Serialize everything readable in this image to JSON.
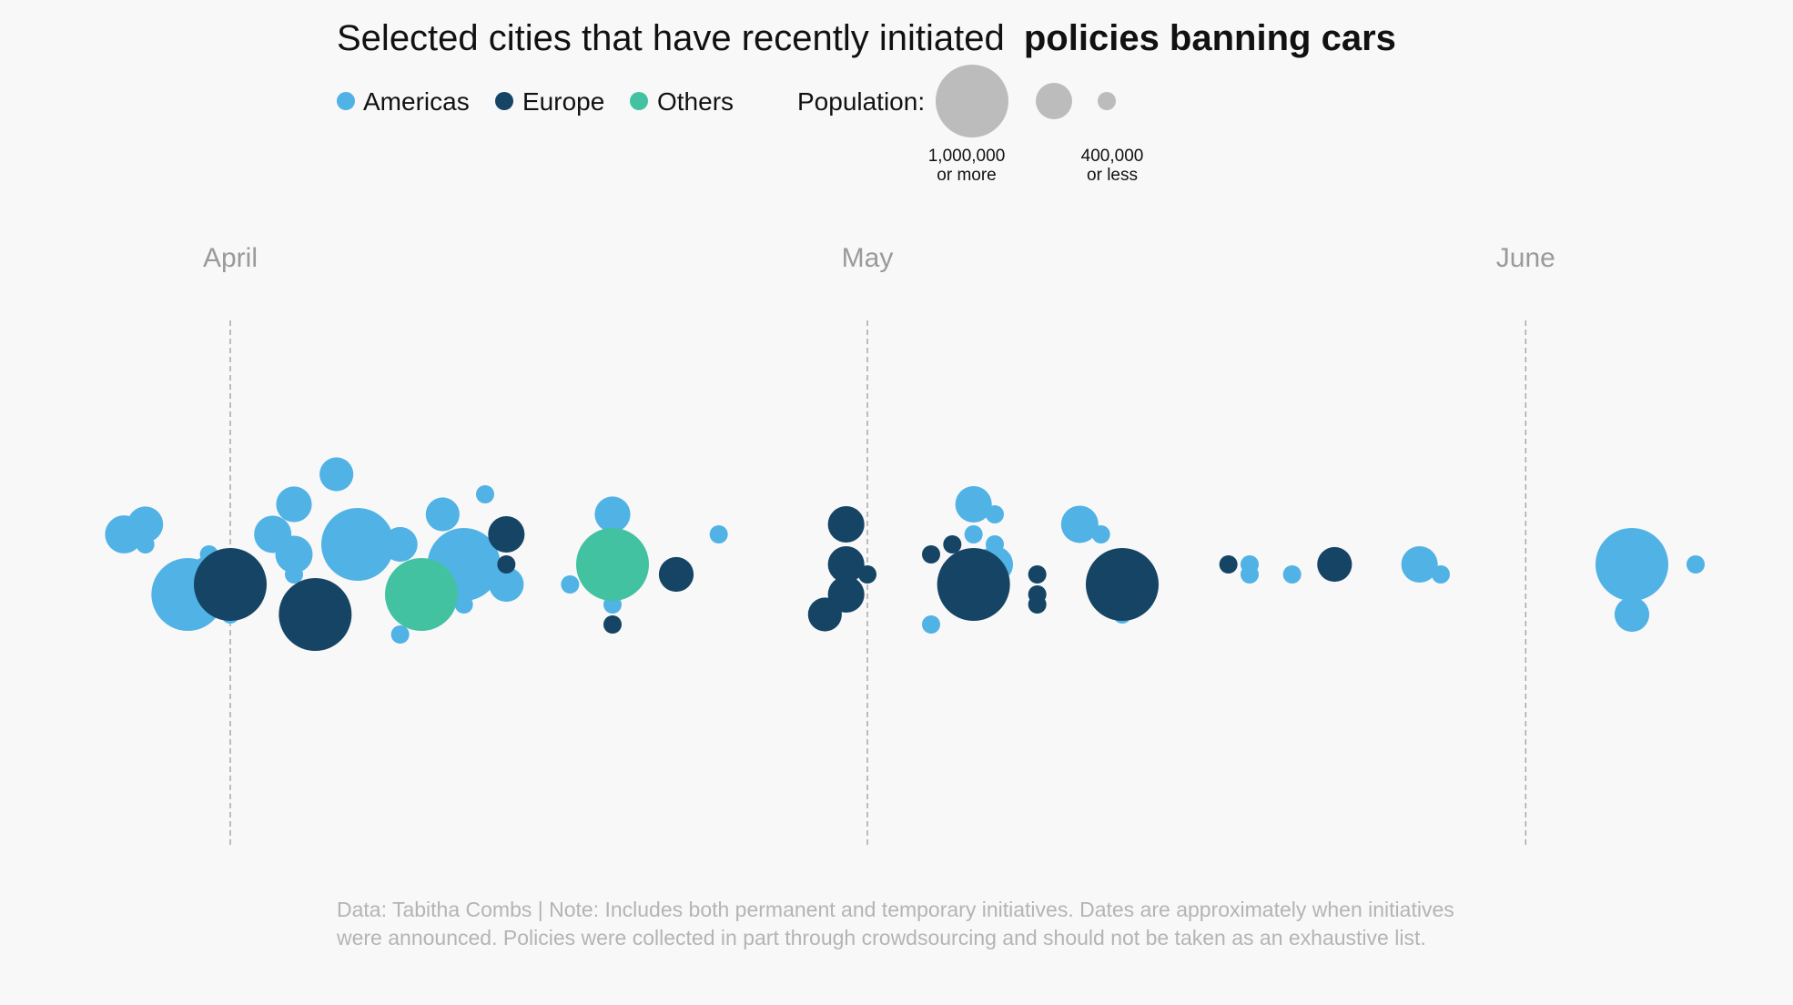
{
  "title": {
    "regular": "Selected cities that have recently initiated",
    "bold": "policies banning cars"
  },
  "legend": {
    "regions": [
      {
        "name": "Americas",
        "color": "#51b2e5"
      },
      {
        "name": "Europe",
        "color": "#154464"
      },
      {
        "name": "Others",
        "color": "#42c2a1"
      }
    ],
    "population_label": "Population:",
    "size_large_line1": "1,000,000",
    "size_large_line2": "or more",
    "size_small_line1": "400,000",
    "size_small_line2": "or less",
    "size_swatch_color": "#bcbcbc"
  },
  "colors": {
    "background": "#f8f8f8",
    "month_gridline": "#a8a8a8",
    "month_label": "#9a9a9a"
  },
  "footnote": "Data: Tabitha Combs | Note: Includes both permanent and temporary initiatives. Dates are approximately when initiatives were announced. Policies were collected in part through crowdsourcing and should not be taken as an exhaustive list.",
  "chart_data": {
    "type": "scatter",
    "subtype": "beeswarm",
    "x_axis": "date",
    "months": [
      {
        "label": "April",
        "date": "2020-04-01"
      },
      {
        "label": "May",
        "date": "2020-05-01"
      },
      {
        "label": "June",
        "date": "2020-06-01"
      }
    ],
    "xlim": [
      "2020-03-25",
      "2020-06-11"
    ],
    "size_legend": [
      {
        "label": "1,000,000 or more",
        "population": 1000000
      },
      {
        "label": null,
        "population": 700000
      },
      {
        "label": "400,000 or less",
        "population": 400000
      }
    ],
    "series": [
      {
        "name": "Americas",
        "points": [
          {
            "date": "2020-03-27",
            "population": 150000,
            "row": 3
          },
          {
            "date": "2020-03-28",
            "population": 120000,
            "row": 4
          },
          {
            "date": "2020-03-28",
            "population": 20000,
            "row": 2
          },
          {
            "date": "2020-03-30",
            "population": 1000000,
            "row": -3
          },
          {
            "date": "2020-03-31",
            "population": 20000,
            "row": 1
          },
          {
            "date": "2020-03-31",
            "population": 140000,
            "row": -1
          },
          {
            "date": "2020-04-01",
            "population": 20000,
            "row": -5
          },
          {
            "date": "2020-04-03",
            "population": 140000,
            "row": 3
          },
          {
            "date": "2020-04-04",
            "population": 120000,
            "row": 6
          },
          {
            "date": "2020-04-04",
            "population": 140000,
            "row": 1
          },
          {
            "date": "2020-04-04",
            "population": 20000,
            "row": -1
          },
          {
            "date": "2020-04-06",
            "population": 100000,
            "row": 9
          },
          {
            "date": "2020-04-07",
            "population": 1000000,
            "row": 2
          },
          {
            "date": "2020-04-09",
            "population": 110000,
            "row": 2
          },
          {
            "date": "2020-04-09",
            "population": 20000,
            "row": -7
          },
          {
            "date": "2020-04-11",
            "population": 100000,
            "row": 5
          },
          {
            "date": "2020-04-12",
            "population": 1000000,
            "row": 0
          },
          {
            "date": "2020-04-12",
            "population": 20000,
            "row": -4
          },
          {
            "date": "2020-04-13",
            "population": 20000,
            "row": 7
          },
          {
            "date": "2020-04-14",
            "population": 110000,
            "row": -2
          },
          {
            "date": "2020-04-17",
            "population": 20000,
            "row": -2
          },
          {
            "date": "2020-04-19",
            "population": 120000,
            "row": 5
          },
          {
            "date": "2020-04-19",
            "population": 20000,
            "row": -4
          },
          {
            "date": "2020-04-24",
            "population": 20000,
            "row": 3
          },
          {
            "date": "2020-04-30",
            "population": 20000,
            "row": 4
          },
          {
            "date": "2020-05-06",
            "population": 130000,
            "row": 6
          },
          {
            "date": "2020-05-06",
            "population": 20000,
            "row": 3
          },
          {
            "date": "2020-05-04",
            "population": 20000,
            "row": -6
          },
          {
            "date": "2020-05-07",
            "population": 20000,
            "row": 5
          },
          {
            "date": "2020-05-07",
            "population": 20000,
            "row": 2
          },
          {
            "date": "2020-05-07",
            "population": 130000,
            "row": 0
          },
          {
            "date": "2020-05-07",
            "population": 20000,
            "row": -2
          },
          {
            "date": "2020-05-11",
            "population": 140000,
            "row": 4
          },
          {
            "date": "2020-05-12",
            "population": 20000,
            "row": 3
          },
          {
            "date": "2020-05-13",
            "population": 20000,
            "row": -5
          },
          {
            "date": "2020-05-19",
            "population": 20000,
            "row": 0
          },
          {
            "date": "2020-05-19",
            "population": 20000,
            "row": -1
          },
          {
            "date": "2020-05-21",
            "population": 20000,
            "row": -1
          },
          {
            "date": "2020-05-27",
            "population": 130000,
            "row": 0
          },
          {
            "date": "2020-05-28",
            "population": 20000,
            "row": -1
          },
          {
            "date": "2020-06-06",
            "population": 1000000,
            "row": 0
          },
          {
            "date": "2020-06-06",
            "population": 110000,
            "row": -5
          },
          {
            "date": "2020-06-09",
            "population": 20000,
            "row": 0
          }
        ]
      },
      {
        "name": "Europe",
        "points": [
          {
            "date": "2020-04-01",
            "population": 1000000,
            "row": -2
          },
          {
            "date": "2020-04-05",
            "population": 1000000,
            "row": -5
          },
          {
            "date": "2020-04-14",
            "population": 130000,
            "row": 3
          },
          {
            "date": "2020-04-14",
            "population": 20000,
            "row": 0
          },
          {
            "date": "2020-04-22",
            "population": 110000,
            "row": -1
          },
          {
            "date": "2020-04-29",
            "population": 100000,
            "row": -5
          },
          {
            "date": "2020-04-30",
            "population": 130000,
            "row": 4
          },
          {
            "date": "2020-04-30",
            "population": 130000,
            "row": 0
          },
          {
            "date": "2020-04-30",
            "population": 130000,
            "row": -3
          },
          {
            "date": "2020-05-01",
            "population": 20000,
            "row": -1
          },
          {
            "date": "2020-05-04",
            "population": 20000,
            "row": 1
          },
          {
            "date": "2020-05-05",
            "population": 20000,
            "row": 2
          },
          {
            "date": "2020-05-06",
            "population": 1000000,
            "row": -2
          },
          {
            "date": "2020-05-09",
            "population": 20000,
            "row": -1
          },
          {
            "date": "2020-05-09",
            "population": 20000,
            "row": -3
          },
          {
            "date": "2020-05-09",
            "population": 20000,
            "row": -4
          },
          {
            "date": "2020-05-13",
            "population": 1000000,
            "row": -2
          },
          {
            "date": "2020-05-18",
            "population": 20000,
            "row": 0
          },
          {
            "date": "2020-05-23",
            "population": 110000,
            "row": 0
          },
          {
            "date": "2020-04-19",
            "population": 20000,
            "row": -6
          }
        ]
      },
      {
        "name": "Others",
        "points": [
          {
            "date": "2020-04-10",
            "population": 1000000,
            "row": -3
          },
          {
            "date": "2020-04-19",
            "population": 1000000,
            "row": 0
          }
        ]
      }
    ]
  }
}
